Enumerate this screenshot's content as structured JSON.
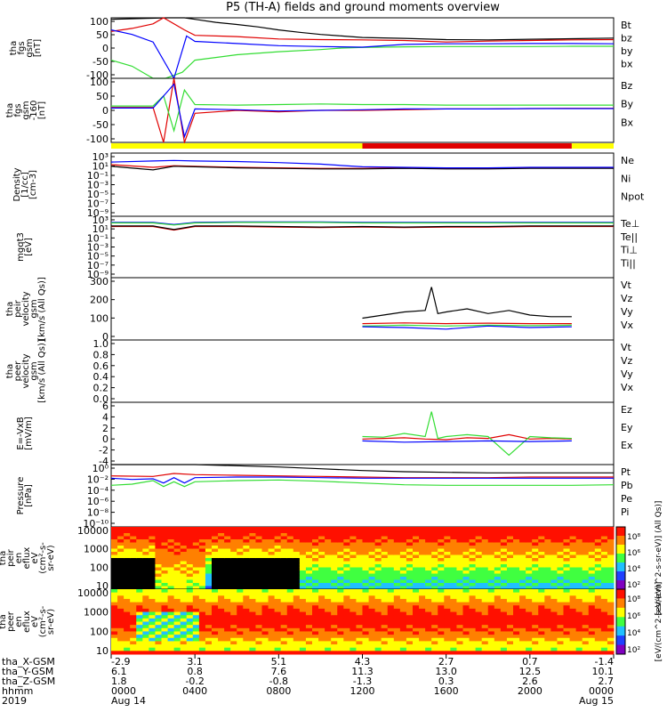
{
  "title": "P5 (TH-A) fields and ground moments overview",
  "colors": {
    "black": "#000000",
    "red": "#e00000",
    "green": "#33dd33",
    "blue": "#0000ff",
    "yellow": "#ffff00",
    "bar_red": "#e00000"
  },
  "chart_data": [
    {
      "id": "fgs",
      "type": "line",
      "ylabel": [
        "tha",
        "fgs",
        "gsm",
        "[nT]"
      ],
      "ylim": [
        -100,
        100
      ],
      "yticks": [
        "100",
        "50",
        "0",
        "-50",
        "-100"
      ],
      "series": [
        {
          "name": "Bt",
          "color": "#000000",
          "x": [
            0,
            2.7,
            3.0,
            3.5,
            4,
            5,
            6,
            7,
            8,
            9,
            10,
            11,
            12,
            14,
            16,
            18,
            20,
            22,
            24
          ],
          "y": [
            95,
            100,
            100,
            100,
            95,
            85,
            78,
            70,
            60,
            52,
            45,
            40,
            35,
            32,
            28,
            27,
            29,
            31,
            33
          ]
        },
        {
          "name": "bz",
          "color": "#e00000",
          "x": [
            0,
            1,
            2,
            2.5,
            3.5,
            4,
            6,
            8,
            10,
            12,
            14,
            16,
            18,
            20,
            22,
            24
          ],
          "y": [
            55,
            65,
            80,
            100,
            60,
            42,
            38,
            30,
            28,
            27,
            25,
            20,
            23,
            25,
            27,
            28
          ]
        },
        {
          "name": "by",
          "color": "#33dd33",
          "x": [
            0,
            1,
            2,
            2.6,
            3.4,
            4,
            6,
            8,
            10,
            11,
            12,
            14,
            16,
            18,
            20,
            22,
            24
          ],
          "y": [
            -40,
            -60,
            -100,
            -100,
            -80,
            -40,
            -22,
            -12,
            -5,
            0,
            2,
            4,
            5,
            5,
            5,
            6,
            6
          ]
        },
        {
          "name": "bx",
          "color": "#0000ff",
          "x": [
            0,
            1,
            2,
            3,
            3.6,
            4,
            6,
            8,
            10,
            12,
            14,
            16,
            18,
            20,
            22,
            24
          ],
          "y": [
            60,
            45,
            20,
            -100,
            40,
            22,
            15,
            8,
            5,
            3,
            12,
            14,
            14,
            15,
            15,
            14
          ]
        }
      ]
    },
    {
      "id": "fgs-160",
      "type": "line",
      "ylabel": [
        "tha",
        "fgs",
        "gsm",
        "-160",
        "[nT]"
      ],
      "ylim": [
        -120,
        100
      ],
      "yticks": [
        "100",
        "50",
        "0",
        "-50",
        "-100"
      ],
      "series": [
        {
          "name": "Bz",
          "color": "#e00000",
          "x": [
            0,
            2,
            2.5,
            3,
            3.5,
            4,
            6,
            8,
            10,
            12,
            14,
            16,
            18,
            20,
            22,
            24
          ],
          "y": [
            0,
            0,
            -120,
            100,
            -120,
            -20,
            -10,
            -15,
            -10,
            -10,
            -8,
            -5,
            -5,
            -4,
            -3,
            -3
          ]
        },
        {
          "name": "By",
          "color": "#33dd33",
          "x": [
            0,
            2,
            2.5,
            3,
            3.5,
            4,
            6,
            8,
            10,
            12,
            14,
            16,
            18,
            20,
            22,
            24
          ],
          "y": [
            5,
            5,
            40,
            -80,
            60,
            10,
            8,
            10,
            12,
            10,
            10,
            8,
            8,
            8,
            8,
            8
          ]
        },
        {
          "name": "Bx",
          "color": "#0000ff",
          "x": [
            0,
            2,
            3,
            3.5,
            4,
            6,
            8,
            10,
            12,
            14,
            16,
            18,
            20,
            22,
            24
          ],
          "y": [
            -2,
            -2,
            80,
            -100,
            -5,
            -8,
            -12,
            -10,
            -8,
            -5,
            -5,
            -5,
            -4,
            -4,
            -4
          ]
        }
      ]
    },
    {
      "id": "density",
      "type": "line",
      "scale": "log",
      "ylabel": [
        "Density",
        "[1/cc]",
        "[cm-3]"
      ],
      "ylim_exp": [
        -9,
        3
      ],
      "yticks": [
        "10³",
        "10¹",
        "10⁻¹",
        "10⁻³",
        "10⁻⁵",
        "10⁻⁷",
        "10⁻⁹"
      ],
      "series": [
        {
          "name": "Ne",
          "color": "#e00000",
          "x": [
            0,
            2,
            3,
            4,
            6,
            8,
            10,
            12,
            14,
            16,
            18,
            20,
            22,
            24
          ],
          "y": [
            0.8,
            0.3,
            0.6,
            0.5,
            0.3,
            0.2,
            0.1,
            0.1,
            0.2,
            0.1,
            0.1,
            0.2,
            0.2,
            0.2
          ]
        },
        {
          "name": "Ni",
          "color": "#000000",
          "x": [
            0,
            2,
            3,
            4,
            6,
            8,
            10,
            12,
            14,
            16,
            18,
            20,
            22,
            24
          ],
          "y": [
            0.5,
            -0.2,
            0.5,
            0.4,
            0.2,
            0.1,
            0.0,
            0.0,
            0.1,
            0.0,
            0.0,
            0.1,
            0.1,
            0.1
          ]
        },
        {
          "name": "Npot",
          "color": "#0000ff",
          "x": [
            0,
            2,
            3,
            4,
            6,
            8,
            10,
            12,
            14,
            16,
            18,
            20,
            22,
            24
          ],
          "y": [
            1.3,
            1.5,
            1.6,
            1.5,
            1.4,
            1.2,
            0.9,
            0.4,
            0.3,
            0.2,
            0.2,
            0.3,
            0.3,
            0.3
          ]
        }
      ]
    },
    {
      "id": "temp",
      "type": "line",
      "scale": "log",
      "ylabel": [
        "mgqt3",
        "[eV]"
      ],
      "ylim_exp": [
        -9,
        3
      ],
      "yticks": [
        "10³",
        "10¹",
        "10⁻¹",
        "10⁻³",
        "10⁻⁵",
        "10⁻⁷",
        "10⁻⁹"
      ],
      "series": [
        {
          "name": "Te⊥",
          "color": "#e00000",
          "x": [
            0,
            2,
            3,
            4,
            6,
            8,
            10,
            12,
            14,
            16,
            18,
            20,
            22,
            24
          ],
          "y": [
            1.0,
            1.0,
            0.3,
            1.0,
            1.0,
            0.9,
            0.8,
            0.9,
            0.8,
            0.9,
            0.9,
            1.0,
            1.0,
            1.0
          ]
        },
        {
          "name": "Te||",
          "color": "#000000",
          "x": [
            0,
            2,
            3,
            4,
            6,
            8,
            10,
            12,
            14,
            16,
            18,
            20,
            22,
            24
          ],
          "y": [
            1.1,
            1.1,
            0.4,
            1.1,
            1.1,
            1.0,
            0.9,
            1.0,
            0.9,
            1.0,
            1.0,
            1.1,
            1.1,
            1.1
          ]
        },
        {
          "name": "Ti⊥",
          "color": "#0000ff",
          "x": [
            0,
            2,
            3,
            4,
            6,
            8,
            10,
            12,
            14,
            16,
            18,
            20,
            22,
            24
          ],
          "y": [
            1.8,
            1.8,
            1.4,
            1.8,
            1.9,
            1.9,
            1.9,
            1.8,
            1.8,
            1.8,
            1.8,
            1.8,
            1.8,
            1.8
          ]
        },
        {
          "name": "Ti||",
          "color": "#33dd33",
          "x": [
            0,
            2,
            3,
            4,
            6,
            8,
            10,
            12,
            14,
            16,
            18,
            20,
            22,
            24
          ],
          "y": [
            1.7,
            1.7,
            1.3,
            1.7,
            1.8,
            1.8,
            1.8,
            1.7,
            1.7,
            1.7,
            1.7,
            1.7,
            1.7,
            1.7
          ]
        }
      ]
    },
    {
      "id": "peir",
      "type": "line",
      "ylabel": [
        "tha",
        "peir",
        "velocity",
        "gsm",
        "[km/s (All Qs)]"
      ],
      "ylim": [
        -100,
        300
      ],
      "yticks": [
        "300",
        "200",
        "100",
        "0"
      ],
      "series": [
        {
          "name": "Vt",
          "color": "#000000",
          "x": [
            12,
            13,
            14,
            15,
            15.3,
            15.6,
            16,
            17,
            18,
            19,
            20,
            21,
            22
          ],
          "y": [
            40,
            60,
            80,
            90,
            240,
            70,
            80,
            100,
            70,
            90,
            60,
            50,
            50
          ]
        },
        {
          "name": "Vz",
          "color": "#e00000",
          "x": [
            12,
            14,
            16,
            18,
            20,
            22
          ],
          "y": [
            5,
            10,
            5,
            8,
            5,
            5
          ]
        },
        {
          "name": "Vy",
          "color": "#33dd33",
          "x": [
            12,
            14,
            16,
            18,
            20,
            22
          ],
          "y": [
            -10,
            -5,
            -10,
            -5,
            -8,
            -5
          ]
        },
        {
          "name": "Vx",
          "color": "#0000ff",
          "x": [
            12,
            14,
            16,
            18,
            20,
            22
          ],
          "y": [
            -15,
            -20,
            -30,
            -10,
            -20,
            -15
          ]
        }
      ]
    },
    {
      "id": "peer",
      "type": "line",
      "ylabel": [
        "tha",
        "peer",
        "velocity",
        "gsm",
        "[km/s (All Qs)]"
      ],
      "ylim": [
        0,
        1
      ],
      "yticks": [
        "1.0",
        "0.8",
        "0.6",
        "0.4",
        "0.2",
        "0.0"
      ],
      "series": [
        {
          "name": "Vt",
          "color": "#000000",
          "x": [],
          "y": []
        },
        {
          "name": "Vz",
          "color": "#e00000",
          "x": [],
          "y": []
        },
        {
          "name": "Vy",
          "color": "#33dd33",
          "x": [],
          "y": []
        },
        {
          "name": "Vx",
          "color": "#0000ff",
          "x": [],
          "y": []
        }
      ]
    },
    {
      "id": "efield",
      "type": "line",
      "ylabel": [
        "E=-VxB",
        "[mV/m]"
      ],
      "ylim": [
        -4,
        6
      ],
      "yticks": [
        "6",
        "4",
        "2",
        "0",
        "-2",
        "-4"
      ],
      "series": [
        {
          "name": "Ez",
          "color": "#e00000",
          "x": [
            12,
            13,
            14,
            15,
            16,
            17,
            18,
            19,
            20,
            21,
            22
          ],
          "y": [
            0.1,
            0.2,
            0.3,
            0.1,
            0.0,
            0.3,
            0.2,
            0.8,
            0.1,
            0.2,
            0.1
          ]
        },
        {
          "name": "Ey",
          "color": "#33dd33",
          "x": [
            12,
            13,
            14,
            15,
            15.3,
            15.6,
            16,
            17,
            18,
            19,
            20,
            21,
            22
          ],
          "y": [
            0.5,
            0.4,
            1,
            0.5,
            4.5,
            0.2,
            0.5,
            0.8,
            0.5,
            -2.5,
            0.5,
            0.3,
            0.2
          ]
        },
        {
          "name": "Ex",
          "color": "#0000ff",
          "x": [
            12,
            14,
            16,
            18,
            20,
            22
          ],
          "y": [
            -0.2,
            -0.4,
            -0.3,
            -0.2,
            -0.3,
            -0.2
          ]
        }
      ]
    },
    {
      "id": "pressure",
      "type": "line",
      "scale": "log",
      "ylabel": [
        "Pressure",
        "[nPa]"
      ],
      "ylim_exp": [
        -10,
        0.5
      ],
      "yticks": [
        "10⁰",
        "10⁻²",
        "10⁻⁴",
        "10⁻⁶",
        "10⁻⁸",
        "10⁻¹⁰"
      ],
      "series": [
        {
          "name": "Pt",
          "color": "#000000",
          "x": [
            0,
            2,
            3,
            4,
            6,
            8,
            10,
            12,
            14,
            16,
            18,
            20,
            22,
            24
          ],
          "y": [
            0.5,
            0.7,
            0.9,
            0.7,
            0.3,
            0.1,
            -0.2,
            -0.5,
            -0.7,
            -0.8,
            -0.9,
            -0.9,
            -0.9,
            -0.9
          ]
        },
        {
          "name": "Pb",
          "color": "#e00000",
          "x": [
            0,
            2,
            3,
            4,
            6,
            8,
            10,
            12,
            14,
            16,
            18,
            20,
            22,
            24
          ],
          "y": [
            -1.4,
            -1.5,
            -1.0,
            -1.2,
            -1.3,
            -1.4,
            -1.5,
            -1.6,
            -1.7,
            -1.7,
            -1.7,
            -1.6,
            -1.6,
            -1.6
          ]
        },
        {
          "name": "Pe",
          "color": "#33dd33",
          "x": [
            0,
            1,
            2,
            2.5,
            3,
            3.5,
            4,
            6,
            8,
            10,
            12,
            14,
            16,
            18,
            20,
            22,
            24
          ],
          "y": [
            -3.0,
            -2.8,
            -2.2,
            -3.2,
            -2.4,
            -3.2,
            -2.4,
            -2.2,
            -2.1,
            -2.3,
            -2.6,
            -2.9,
            -3.0,
            -3.0,
            -3.0,
            -3.0,
            -2.9
          ]
        },
        {
          "name": "Pi",
          "color": "#0000ff",
          "x": [
            0,
            1,
            2,
            2.5,
            3,
            3.5,
            4,
            6,
            8,
            10,
            12,
            14,
            16,
            18,
            20,
            22,
            24
          ],
          "y": [
            -1.8,
            -2.0,
            -1.9,
            -2.6,
            -1.7,
            -2.6,
            -1.7,
            -1.6,
            -1.6,
            -1.7,
            -1.8,
            -1.8,
            -1.8,
            -1.8,
            -1.8,
            -1.8,
            -1.8
          ]
        }
      ]
    },
    {
      "id": "peir-spec",
      "type": "heatmap",
      "ylabel": [
        "tha",
        "peir",
        "en",
        "eflux",
        "eV",
        "(cm²-s-",
        "sr-eV)"
      ],
      "yticks": [
        "10000",
        "1000",
        "100",
        "10"
      ],
      "colorbar_label": "[eV/(cm^2-s-sr-eV)] (All Qs)]",
      "cbticks": [
        "10⁸",
        "10⁶",
        "10⁴",
        "10²"
      ]
    },
    {
      "id": "peer-spec",
      "type": "heatmap",
      "ylabel": [
        "tha",
        "peer",
        "en",
        "eflux",
        "eV",
        "(cm²-s-",
        "sr-eV)"
      ],
      "yticks": [
        "10000",
        "1000",
        "100",
        "10"
      ],
      "colorbar_label": "[eV/(cm^2-s-sr-eV)]",
      "cbticks": [
        "10⁸",
        "10⁶",
        "10⁴",
        "10²"
      ]
    }
  ],
  "time_axis": {
    "rows": [
      {
        "label": "tha_X-GSM",
        "values": [
          "-2.9",
          "3.1",
          "5.1",
          "4.3",
          "2.7",
          "0.7",
          "-1.4"
        ]
      },
      {
        "label": "tha_Y-GSM",
        "values": [
          "6.1",
          "0.8",
          "7.6",
          "11.3",
          "13.0",
          "12.5",
          "10.1"
        ]
      },
      {
        "label": "tha_Z-GSM",
        "values": [
          "1.8",
          "-0.2",
          "-0.8",
          "-1.3",
          "0.3",
          "2.6",
          "2.7"
        ]
      },
      {
        "label": "hhmm",
        "values": [
          "0000",
          "0400",
          "0800",
          "1200",
          "1600",
          "2000",
          "0000"
        ]
      },
      {
        "label": "2019",
        "values": [
          "Aug 14",
          "",
          "",
          "",
          "",
          "",
          "Aug 15"
        ]
      }
    ]
  }
}
